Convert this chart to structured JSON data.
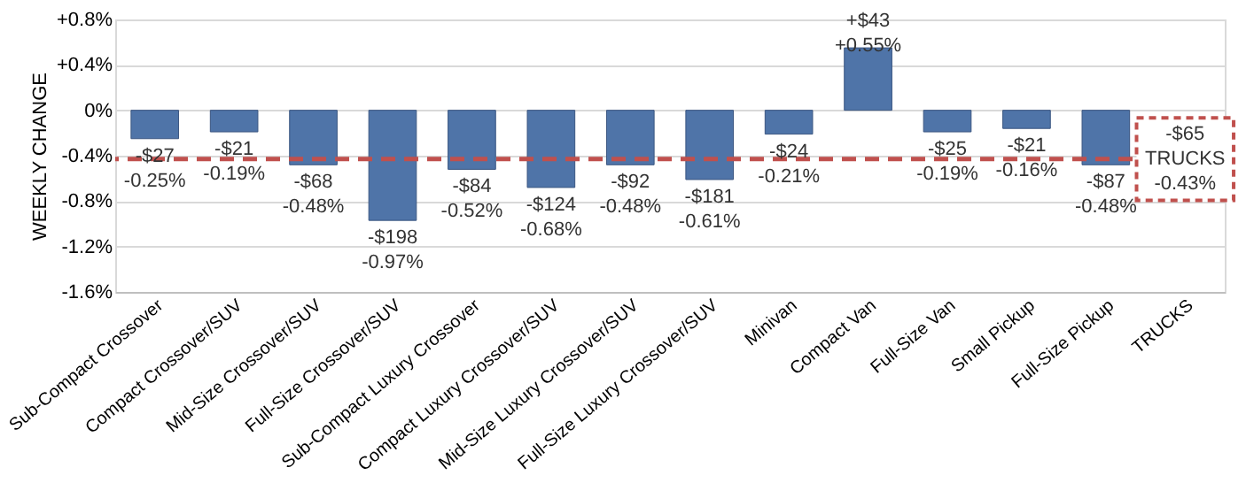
{
  "chart_data": {
    "type": "bar",
    "ylabel": "WEEKLY CHANGE",
    "categories": [
      "Sub-Compact Crossover",
      "Compact Crossover/SUV",
      "Mid-Size Crossover/SUV",
      "Full-Size Crossover/SUV",
      "Sub-Compact Luxury Crossover",
      "Compact Luxury Crossover/SUV",
      "Mid-Size Luxury Crossover/SUV",
      "Full-Size Luxury Crossover/SUV",
      "Minivan",
      "Compact Van",
      "Full-Size Van",
      "Small Pickup",
      "Full-Size Pickup",
      "TRUCKS"
    ],
    "values": [
      -0.25,
      -0.19,
      -0.48,
      -0.97,
      -0.52,
      -0.68,
      -0.48,
      -0.61,
      -0.21,
      0.55,
      -0.19,
      -0.16,
      -0.48,
      null
    ],
    "value_labels": [
      "-$27\n-0.25%",
      "-$21\n-0.19%",
      "-$68\n-0.48%",
      "-$198\n-0.97%",
      "-$84\n-0.52%",
      "-$124\n-0.68%",
      "-$92\n-0.48%",
      "-$181\n-0.61%",
      "-$24\n-0.21%",
      "+$43\n+0.55%",
      "-$25\n-0.19%",
      "-$21\n-0.16%",
      "-$87\n-0.48%",
      null
    ],
    "color": "#4f74a8",
    "ylim": [
      -1.6,
      0.8
    ],
    "yticks": [
      {
        "value": 0.8,
        "label": "+0.8%"
      },
      {
        "value": 0.4,
        "label": "+0.4%"
      },
      {
        "value": 0,
        "label": "0%"
      },
      {
        "value": -0.4,
        "label": "-0.4%"
      },
      {
        "value": -0.8,
        "label": "-0.8%"
      },
      {
        "value": -1.2,
        "label": "-1.2%"
      },
      {
        "value": -1.6,
        "label": "-1.6%"
      }
    ],
    "grid": "y",
    "ref_lines": [
      {
        "axis": "y",
        "value": -0.43,
        "color": "#c0504d",
        "line_style": "dashed"
      }
    ],
    "annotations": [
      {
        "text": "-$65\nTRUCKS\n-0.43%",
        "x": "TRUCKS",
        "y": -0.43
      }
    ]
  }
}
